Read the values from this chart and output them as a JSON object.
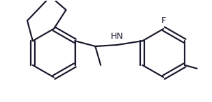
{
  "background_color": "#ffffff",
  "line_color": "#1a1a2e",
  "line_width": 1.6,
  "font_size_F": 9,
  "font_size_HN": 9,
  "font_size_Me": 8,
  "figsize": [
    3.1,
    1.5
  ],
  "dpi": 100,
  "xlim": [
    0,
    310
  ],
  "ylim": [
    0,
    150
  ]
}
